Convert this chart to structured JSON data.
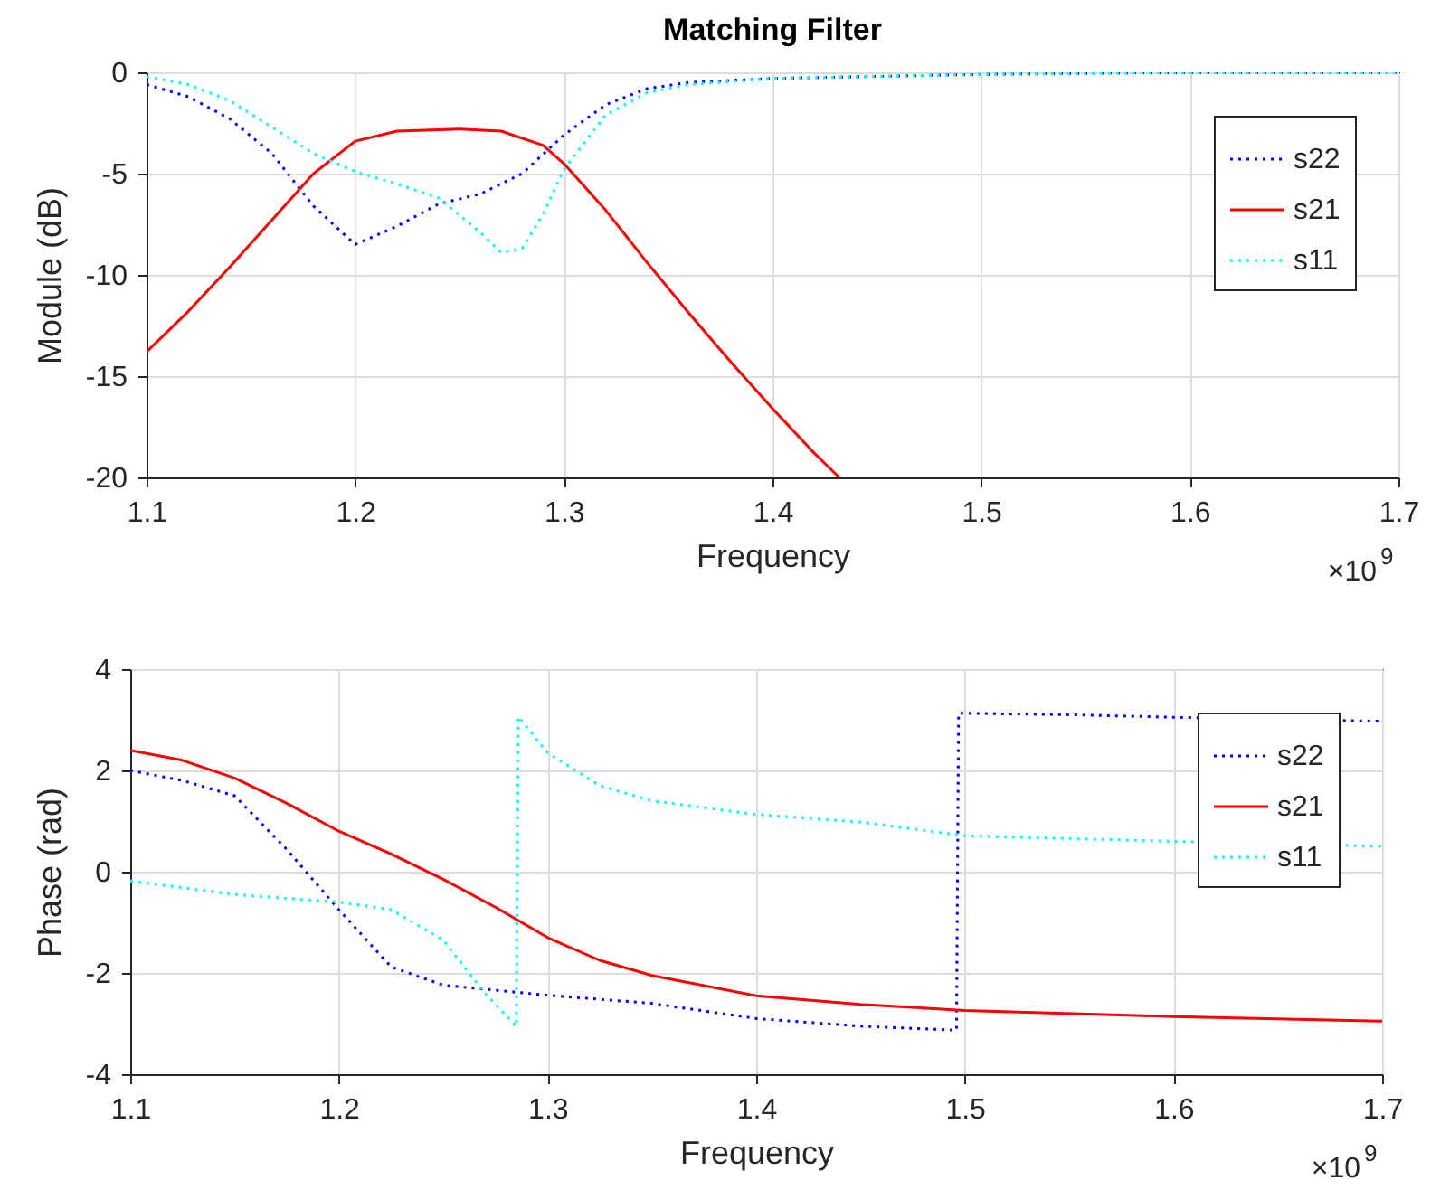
{
  "chart_data": [
    {
      "type": "line",
      "title": "Matching Filter",
      "xlabel": "Frequency",
      "ylabel": "Module (dB)",
      "annotations": [
        "×10$^{9}$"
      ],
      "xlim": [
        1.1,
        1.7
      ],
      "xticks": [
        1.1,
        1.2,
        1.3,
        1.4,
        1.5,
        1.6,
        1.7
      ],
      "ylim": [
        -20,
        0
      ],
      "yticks": [
        -20,
        -15,
        -10,
        -5,
        0
      ],
      "grid": true,
      "legend": "top right",
      "series": [
        {
          "name": "s22",
          "color": "#0000ff",
          "line_style": "dotted",
          "x": [
            1.1,
            1.12,
            1.14,
            1.16,
            1.18,
            1.2,
            1.22,
            1.24,
            1.26,
            1.28,
            1.3,
            1.32,
            1.34,
            1.36,
            1.4,
            1.45,
            1.5,
            1.6,
            1.7
          ],
          "values": [
            -0.6,
            -1.2,
            -2.3,
            -4.0,
            -6.6,
            -8.5,
            -7.6,
            -6.5,
            -6.0,
            -5.0,
            -3.1,
            -1.6,
            -0.8,
            -0.5,
            -0.3,
            -0.2,
            -0.1,
            0,
            0
          ]
        },
        {
          "name": "s21",
          "color": "#ff0000",
          "line_style": "solid",
          "x": [
            1.1,
            1.12,
            1.14,
            1.16,
            1.18,
            1.2,
            1.22,
            1.25,
            1.27,
            1.29,
            1.3,
            1.32,
            1.34,
            1.36,
            1.38,
            1.4,
            1.42,
            1.432
          ],
          "values": [
            -13.8,
            -11.8,
            -9.6,
            -7.3,
            -5.0,
            -3.4,
            -2.9,
            -2.8,
            -2.9,
            -3.6,
            -4.5,
            -6.8,
            -9.4,
            -11.9,
            -14.3,
            -16.6,
            -18.8,
            -20
          ]
        },
        {
          "name": "s11",
          "color": "#00ffff",
          "line_style": "dotted",
          "x": [
            1.1,
            1.12,
            1.14,
            1.16,
            1.18,
            1.2,
            1.22,
            1.24,
            1.26,
            1.27,
            1.28,
            1.29,
            1.3,
            1.32,
            1.34,
            1.36,
            1.4,
            1.45,
            1.5,
            1.6,
            1.7
          ],
          "values": [
            -0.2,
            -0.6,
            -1.4,
            -2.7,
            -4.0,
            -4.9,
            -5.5,
            -6.2,
            -7.9,
            -8.9,
            -8.7,
            -7.0,
            -4.8,
            -2.1,
            -1.0,
            -0.6,
            -0.3,
            -0.2,
            -0.1,
            0,
            0
          ]
        }
      ]
    },
    {
      "type": "line",
      "xlabel": "Frequency",
      "ylabel": "Phase (rad)",
      "annotations": [
        "×10$^{9}$"
      ],
      "xlim": [
        1.1,
        1.7
      ],
      "xticks": [
        1.1,
        1.2,
        1.3,
        1.4,
        1.5,
        1.6,
        1.7
      ],
      "ylim": [
        -4,
        4
      ],
      "yticks": [
        -4,
        -2,
        0,
        2,
        4
      ],
      "grid": true,
      "legend": "top right",
      "series": [
        {
          "name": "s22",
          "color": "#0000ff",
          "line_style": "dotted",
          "x": [
            1.1,
            1.125,
            1.15,
            1.175,
            1.2,
            1.225,
            1.25,
            1.3,
            1.35,
            1.4,
            1.45,
            1.496,
            1.497,
            1.55,
            1.6,
            1.7
          ],
          "values": [
            2.0,
            1.8,
            1.5,
            0.44,
            -0.75,
            -1.88,
            -2.24,
            -2.44,
            -2.6,
            -2.9,
            -3.05,
            -3.13,
            3.13,
            3.1,
            3.05,
            2.97
          ]
        },
        {
          "name": "s21",
          "color": "#ff0000",
          "line_style": "solid",
          "x": [
            1.1,
            1.125,
            1.15,
            1.175,
            1.2,
            1.225,
            1.25,
            1.275,
            1.3,
            1.325,
            1.35,
            1.4,
            1.45,
            1.5,
            1.6,
            1.7
          ],
          "values": [
            2.4,
            2.2,
            1.85,
            1.35,
            0.8,
            0.35,
            -0.15,
            -0.7,
            -1.3,
            -1.75,
            -2.05,
            -2.45,
            -2.62,
            -2.74,
            -2.86,
            -2.95
          ]
        },
        {
          "name": "s11",
          "color": "#00ffff",
          "line_style": "dotted",
          "x": [
            1.1,
            1.15,
            1.2,
            1.225,
            1.25,
            1.27,
            1.285,
            1.286,
            1.3,
            1.325,
            1.35,
            1.4,
            1.45,
            1.5,
            1.6,
            1.7
          ],
          "values": [
            -0.18,
            -0.45,
            -0.6,
            -0.75,
            -1.35,
            -2.4,
            -3.05,
            3.06,
            2.35,
            1.7,
            1.4,
            1.13,
            0.98,
            0.71,
            0.6,
            0.5
          ]
        }
      ]
    }
  ]
}
